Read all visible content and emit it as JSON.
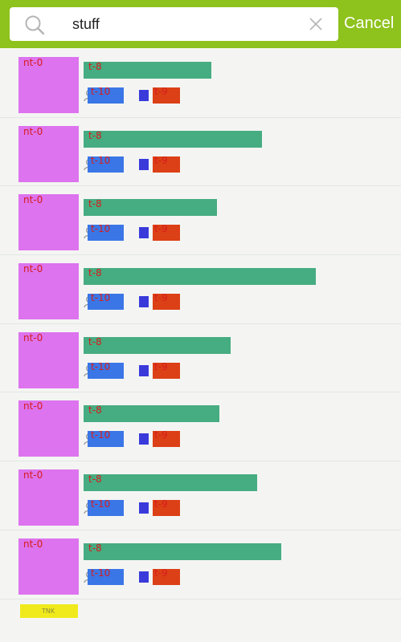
{
  "search": {
    "value": "stuff",
    "cancel_label": "Cancel"
  },
  "results": [
    {
      "thumb": "nt-0",
      "title": "t-8",
      "meta1": "t-10",
      "meta2": "t-9",
      "title_width_pct": 0.48
    },
    {
      "thumb": "nt-0",
      "title": "t-8",
      "meta1": "t-10",
      "meta2": "t-9",
      "title_width_pct": 0.67
    },
    {
      "thumb": "nt-0",
      "title": "t-8",
      "meta1": "t-10",
      "meta2": "t-9",
      "title_width_pct": 0.5
    },
    {
      "thumb": "nt-0",
      "title": "t-8",
      "meta1": "t-10",
      "meta2": "t-9",
      "title_width_pct": 0.87
    },
    {
      "thumb": "nt-0",
      "title": "t-8",
      "meta1": "t-10",
      "meta2": "t-9",
      "title_width_pct": 0.55
    },
    {
      "thumb": "nt-0",
      "title": "t-8",
      "meta1": "t-10",
      "meta2": "t-9",
      "title_width_pct": 0.51
    },
    {
      "thumb": "nt-0",
      "title": "t-8",
      "meta1": "t-10",
      "meta2": "t-9",
      "title_width_pct": 0.65
    },
    {
      "thumb": "nt-0",
      "title": "t-8",
      "meta1": "t-10",
      "meta2": "t-9",
      "title_width_pct": 0.74
    }
  ],
  "footer": {
    "logo_text": "TNK"
  },
  "colors": {
    "topbar": "#8ec21c",
    "thumb": "#dd73ee",
    "title": "#46ac81",
    "meta1": "#3a76e6",
    "meta2": "#dc4016"
  },
  "icons": {
    "search": "search-icon",
    "clear": "close-icon",
    "user": "user-add-icon"
  }
}
